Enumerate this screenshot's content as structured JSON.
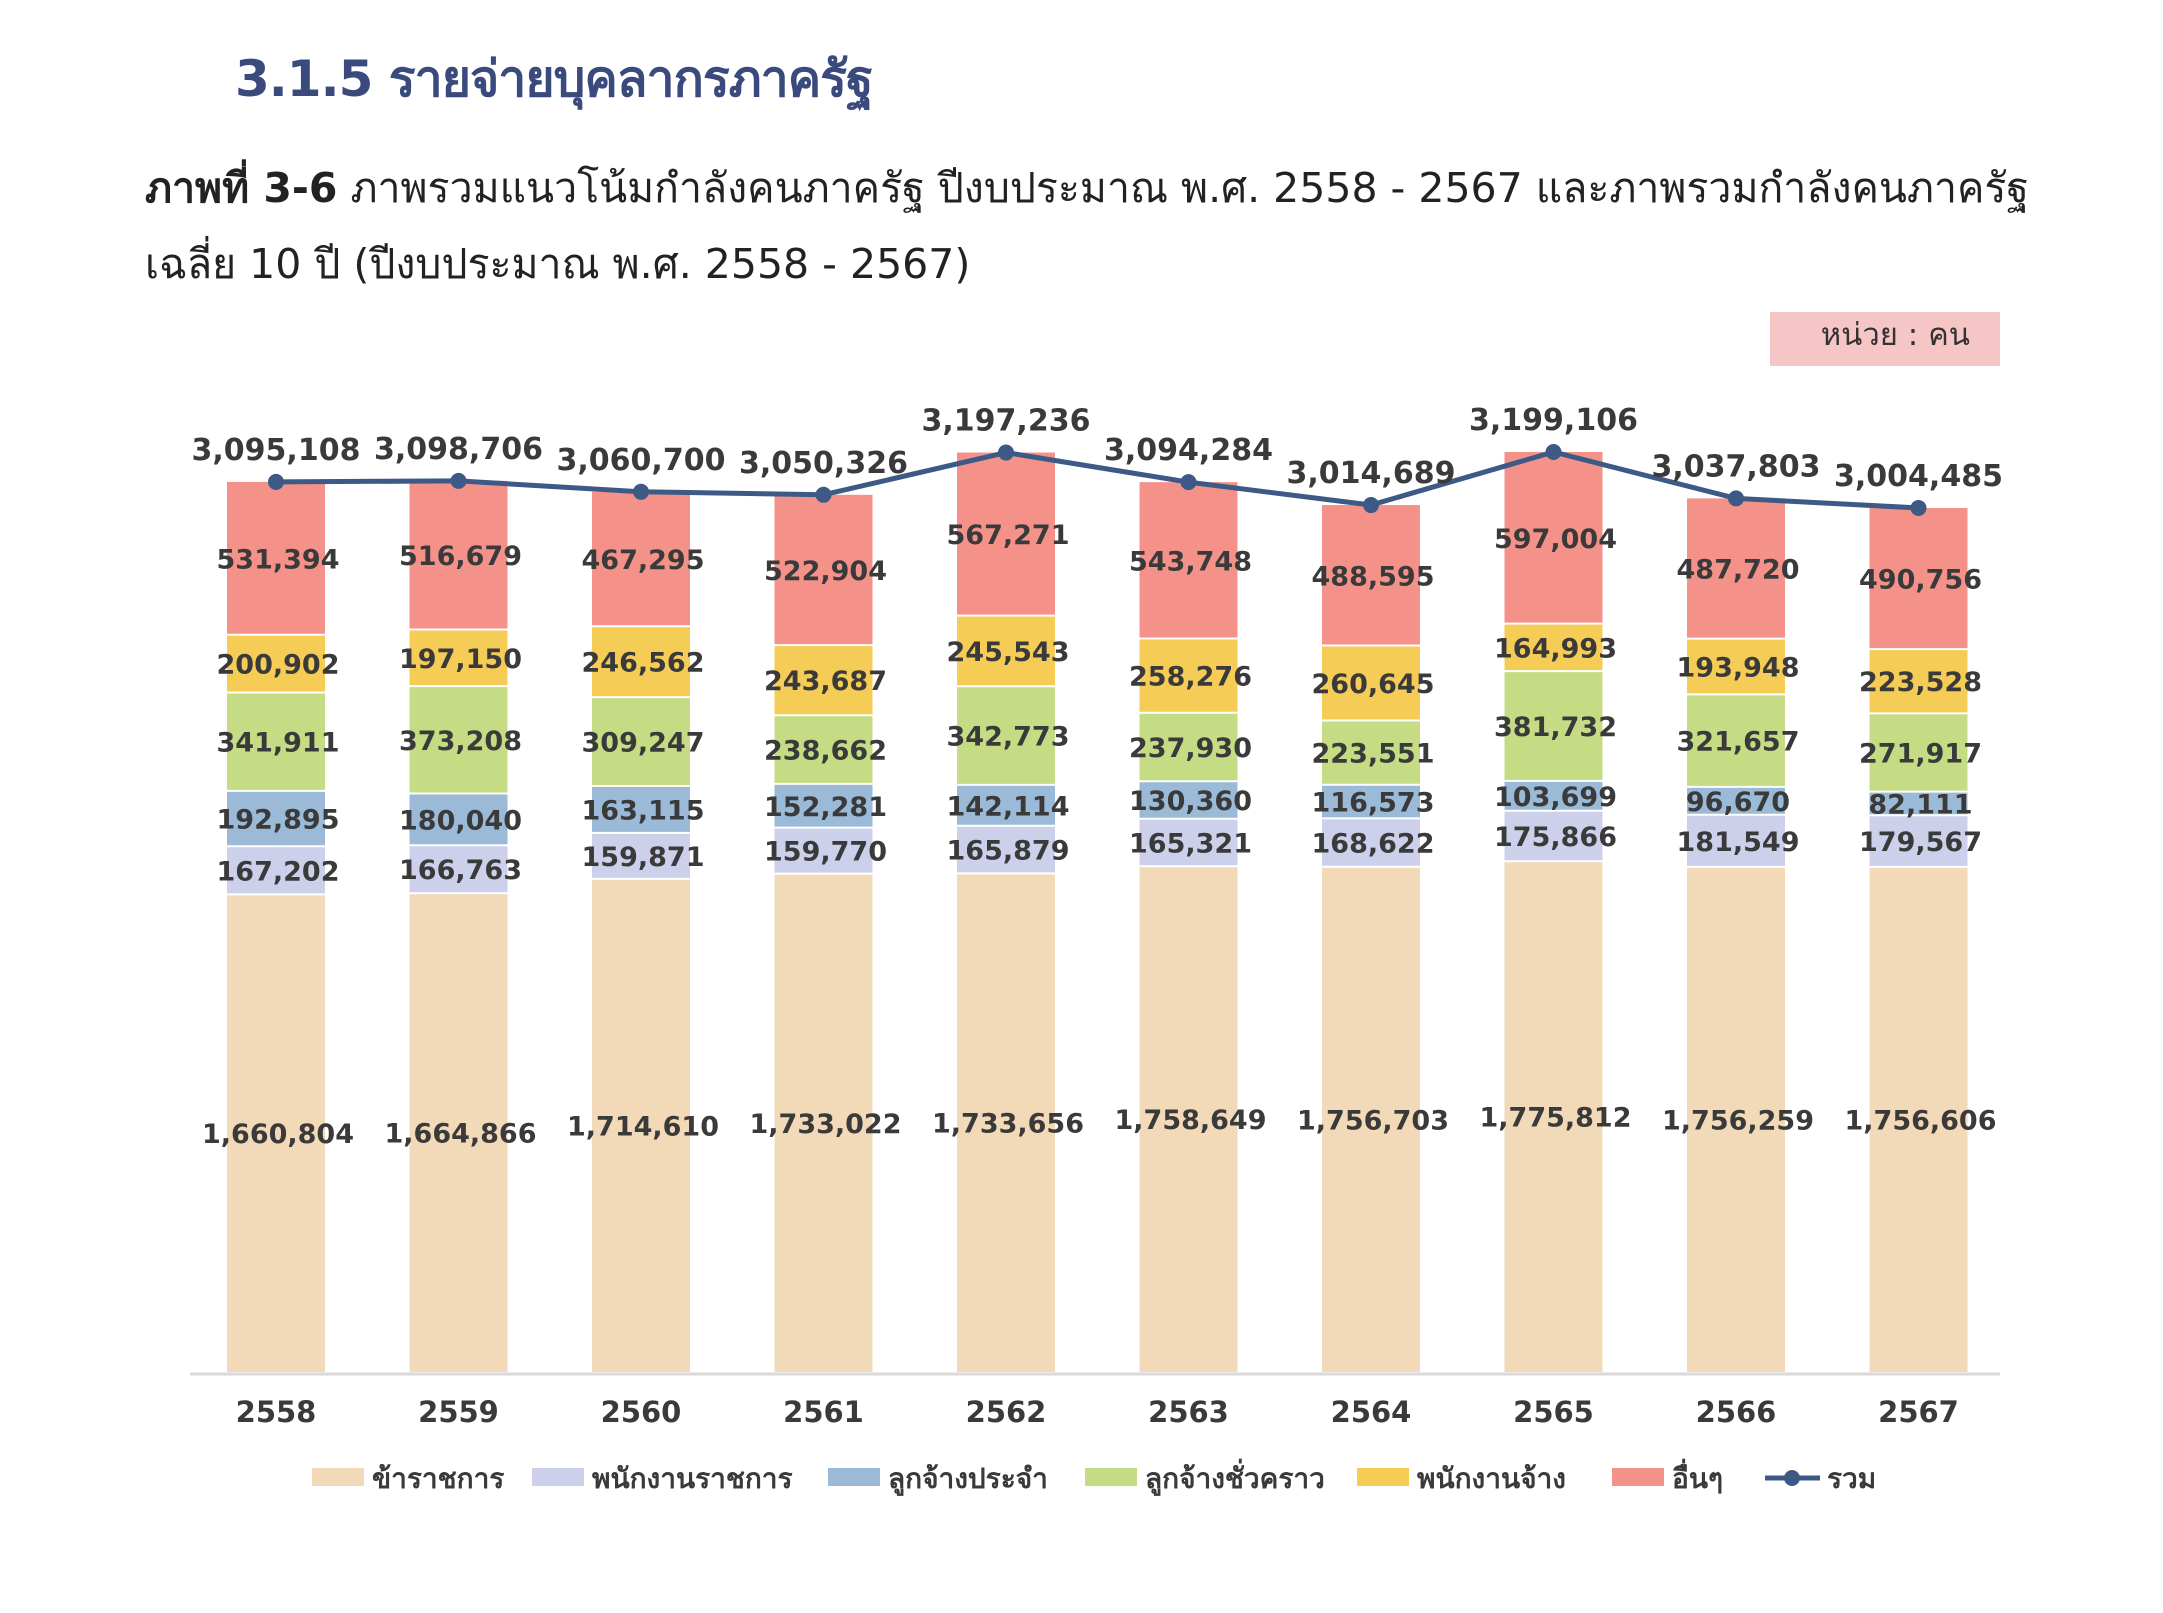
{
  "heading": "3.1.5 รายจ่ายบุคลากรภาครัฐ",
  "caption": {
    "lead": "ภาพที่ 3-6",
    "text": " ภาพรวมแนวโน้มกำลังคนภาครัฐ ปีงบประมาณ พ.ศ. 2558 - 2567 และภาพรวมกำลังคนภาครัฐ เฉลี่ย 10 ปี (ปีงบประมาณ พ.ศ. 2558 - 2567)"
  },
  "unit_label": "หน่วย : คน",
  "chart_data": {
    "type": "bar",
    "stacked": true,
    "categories": [
      "2558",
      "2559",
      "2560",
      "2561",
      "2562",
      "2563",
      "2564",
      "2565",
      "2566",
      "2567"
    ],
    "series": [
      {
        "name": "ข้าราชการ",
        "color": "#f2d9b8",
        "values": [
          1660804,
          1664866,
          1714610,
          1733022,
          1733656,
          1758649,
          1756703,
          1775812,
          1756259,
          1756606
        ],
        "labels": [
          "1,660,804",
          "1,664,866",
          "1,714,610",
          "1,733,022",
          "1,733,656",
          "1,758,649",
          "1,756,703",
          "1,775,812",
          "1,756,259",
          "1,756,606"
        ]
      },
      {
        "name": "พนักงานราชการ",
        "color": "#cdd0ea",
        "values": [
          167202,
          166763,
          159871,
          159770,
          165879,
          165321,
          168622,
          175866,
          181549,
          179567
        ],
        "labels": [
          "167,202",
          "166,763",
          "159,871",
          "159,770",
          "165,879",
          "165,321",
          "168,622",
          "175,866",
          "181,549",
          "179,567"
        ]
      },
      {
        "name": "ลูกจ้างประจำ",
        "color": "#9bbad7",
        "values": [
          192895,
          180040,
          163115,
          152281,
          142114,
          130360,
          116573,
          103699,
          96670,
          82111
        ],
        "labels": [
          "192,895",
          "180,040",
          "163,115",
          "152,281",
          "142,114",
          "130,360",
          "116,573",
          "103,699",
          "96,670",
          "82,111"
        ]
      },
      {
        "name": "ลูกจ้างชั่วคราว",
        "color": "#c6dc84",
        "values": [
          341911,
          373208,
          309247,
          238662,
          342773,
          237930,
          223551,
          381732,
          321657,
          271917
        ],
        "labels": [
          "341,911",
          "373,208",
          "309,247",
          "238,662",
          "342,773",
          "237,930",
          "223,551",
          "381,732",
          "321,657",
          "271,917"
        ]
      },
      {
        "name": "พนักงานจ้าง",
        "color": "#f5cc55",
        "values": [
          200902,
          197150,
          246562,
          243687,
          245543,
          258276,
          260645,
          164993,
          193948,
          223528
        ],
        "labels": [
          "200,902",
          "197,150",
          "246,562",
          "243,687",
          "245,543",
          "258,276",
          "260,645",
          "164,993",
          "193,948",
          "223,528"
        ]
      },
      {
        "name": "อื่นๆ",
        "color": "#f4928a",
        "values": [
          531394,
          516679,
          467295,
          522904,
          567271,
          543748,
          488595,
          597004,
          487720,
          490756
        ],
        "labels": [
          "531,394",
          "516,679",
          "467,295",
          "522,904",
          "567,271",
          "543,748",
          "488,595",
          "597,004",
          "487,720",
          "490,756"
        ]
      }
    ],
    "total": {
      "name": "รวม",
      "color": "#3d5a86",
      "values": [
        3095108,
        3098706,
        3060700,
        3050326,
        3197236,
        3094284,
        3014689,
        3199106,
        3037803,
        3004485
      ],
      "labels": [
        "3,095,108",
        "3,098,706",
        "3,060,700",
        "3,050,326",
        "3,197,236",
        "3,094,284",
        "3,014,689",
        "3,199,106",
        "3,037,803",
        "3,004,485"
      ]
    },
    "legend_position": "bottom"
  }
}
